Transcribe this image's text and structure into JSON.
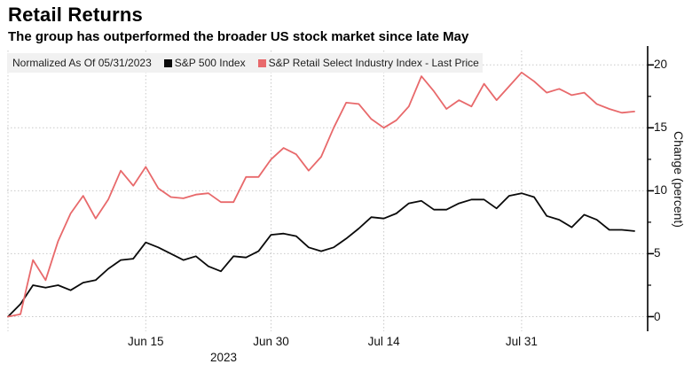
{
  "header": {
    "title": "Retail Returns",
    "subtitle": "The group has outperformed the broader US stock market since late May"
  },
  "legend": {
    "normalized": "Normalized As Of 05/31/2023",
    "series": [
      {
        "label": "S&P 500 Index",
        "color": "#0a0a0a"
      },
      {
        "label": "S&P Retail Select Industry Index - Last Price",
        "color": "#e8696b"
      }
    ]
  },
  "chart_data": {
    "type": "line",
    "title": "Retail Returns",
    "xlabel": "",
    "ylabel": "Change (percent)",
    "ylim": [
      -0.5,
      21.5
    ],
    "y_ticks": [
      0,
      5,
      10,
      15,
      20
    ],
    "y_minor_ticks": [
      2.5,
      7.5,
      12.5,
      17.5
    ],
    "grid": "dotted",
    "legend_position": "top",
    "year_label": "2023",
    "categories": [
      "05/31",
      "06/01",
      "06/02",
      "06/05",
      "06/06",
      "06/07",
      "06/08",
      "06/09",
      "06/12",
      "06/13",
      "06/14",
      "06/15",
      "06/16",
      "06/20",
      "06/21",
      "06/22",
      "06/23",
      "06/26",
      "06/27",
      "06/28",
      "06/29",
      "06/30",
      "07/03",
      "07/05",
      "07/06",
      "07/07",
      "07/10",
      "07/11",
      "07/12",
      "07/13",
      "07/14",
      "07/17",
      "07/18",
      "07/19",
      "07/20",
      "07/21",
      "07/24",
      "07/25",
      "07/26",
      "07/27",
      "07/28",
      "07/31",
      "08/01",
      "08/02",
      "08/03",
      "08/04",
      "08/07",
      "08/08",
      "08/09",
      "08/10",
      "08/11"
    ],
    "x_ticks": [
      {
        "label": "Jun 15",
        "day_index": 11
      },
      {
        "label": "Jun 30",
        "day_index": 21
      },
      {
        "label": "Jul 14",
        "day_index": 30
      },
      {
        "label": "Jul 31",
        "day_index": 41
      }
    ],
    "series": [
      {
        "name": "S&P 500 Index",
        "color": "#0a0a0a",
        "values": [
          0,
          1.0,
          2.5,
          2.3,
          2.5,
          2.1,
          2.7,
          2.9,
          3.8,
          4.5,
          4.6,
          5.9,
          5.5,
          5.0,
          4.5,
          4.8,
          4.0,
          3.6,
          4.8,
          4.7,
          5.2,
          6.5,
          6.6,
          6.4,
          5.5,
          5.2,
          5.5,
          6.2,
          7.0,
          7.9,
          7.8,
          8.2,
          9.0,
          9.2,
          8.5,
          8.5,
          9.0,
          9.3,
          9.3,
          8.6,
          9.6,
          9.8,
          9.5,
          8.0,
          7.7,
          7.1,
          8.1,
          7.7,
          6.9,
          6.9,
          6.8
        ]
      },
      {
        "name": "S&P Retail Select Industry Index - Last Price",
        "color": "#e8696b",
        "values": [
          0,
          0.2,
          4.5,
          2.9,
          6.0,
          8.2,
          9.6,
          7.8,
          9.3,
          11.6,
          10.4,
          11.9,
          10.2,
          9.5,
          9.4,
          9.7,
          9.8,
          9.1,
          9.1,
          11.1,
          11.1,
          12.5,
          13.4,
          12.9,
          11.6,
          12.7,
          15.0,
          17.0,
          16.9,
          15.7,
          15.0,
          15.6,
          16.7,
          19.1,
          17.9,
          16.5,
          17.2,
          16.7,
          18.5,
          17.2,
          18.3,
          19.4,
          18.7,
          17.8,
          18.1,
          17.6,
          17.8,
          16.9,
          16.5,
          16.2,
          16.3
        ]
      }
    ]
  }
}
